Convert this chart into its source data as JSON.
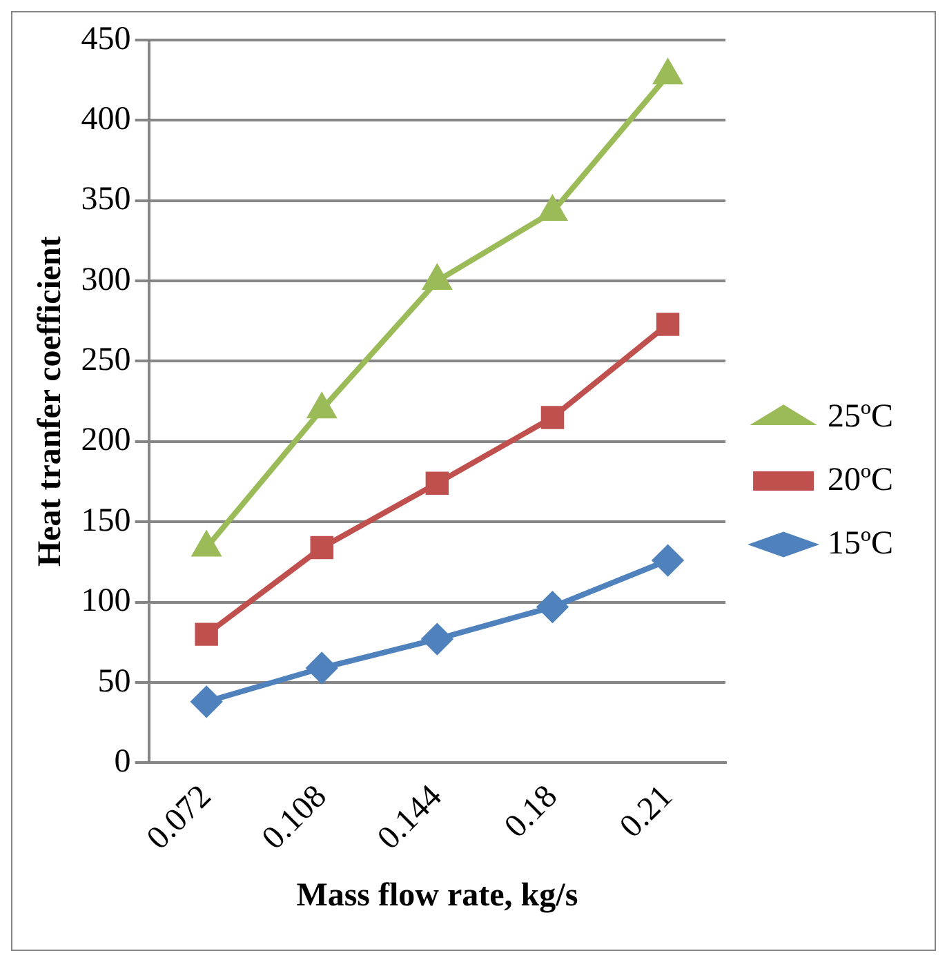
{
  "chart_data": {
    "type": "line",
    "xlabel": "Mass flow rate, kg/s",
    "ylabel": "Heat tranfer coefficient",
    "categories": [
      "0.072",
      "0.108",
      "0.144",
      "0.18",
      "0.21"
    ],
    "series": [
      {
        "name": "25ºC",
        "color": "#9bbb59",
        "marker": "triangle",
        "values": [
          134,
          220,
          300,
          343,
          428
        ]
      },
      {
        "name": "20ºC",
        "color": "#c0504d",
        "marker": "square",
        "values": [
          80,
          134,
          174,
          215,
          273
        ]
      },
      {
        "name": "15ºC",
        "color": "#4f81bd",
        "marker": "diamond",
        "values": [
          38,
          59,
          77,
          97,
          126
        ]
      }
    ],
    "ylim": [
      0,
      450
    ],
    "yticks": [
      0,
      50,
      100,
      150,
      200,
      250,
      300,
      350,
      400,
      450
    ],
    "grid": "y",
    "legend": "right",
    "line_style": "solid"
  }
}
